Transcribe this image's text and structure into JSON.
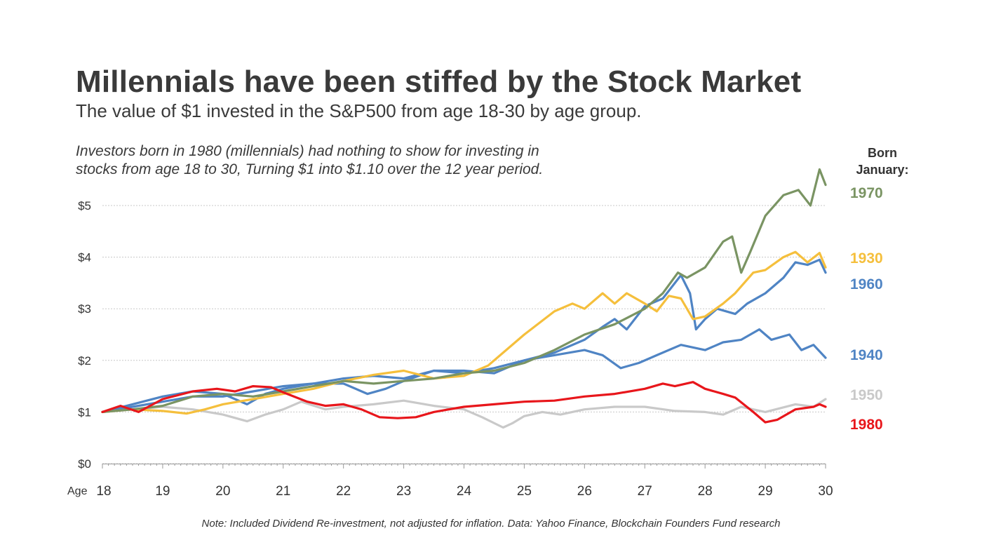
{
  "chart_data": {
    "type": "line",
    "title": "Millennials have been stiffed by the Stock Market",
    "subtitle": "The value of $1 invested in the S&P500 from age 18-30 by age group.",
    "annotation": [
      "Investors born in 1980 (millennials) had nothing to show for investing in",
      "stocks from age 18 to 30, Turning $1 into $1.10 over the 12 year period."
    ],
    "legend_title": [
      "Born",
      "January:"
    ],
    "legend_placement": "right",
    "note": "Note: Included Dividend Re-investment, not adjusted for inflation. Data: Yahoo Finance, Blockchain Founders Fund research",
    "xlabel": "Age",
    "x_ticks": [
      "18",
      "19",
      "20",
      "21",
      "22",
      "23",
      "24",
      "25",
      "26",
      "27",
      "28",
      "29",
      "30"
    ],
    "y_ticks": [
      "$0",
      "$1",
      "$2",
      "$3",
      "$4",
      "$5"
    ],
    "xlim": [
      18,
      30
    ],
    "ylim": [
      0,
      5
    ],
    "grid": true,
    "series": [
      {
        "name": "1970",
        "color": "#7a9463",
        "points": [
          [
            18,
            1.0
          ],
          [
            18.5,
            1.05
          ],
          [
            19,
            1.12
          ],
          [
            19.5,
            1.3
          ],
          [
            20,
            1.35
          ],
          [
            20.5,
            1.3
          ],
          [
            21,
            1.4
          ],
          [
            21.5,
            1.5
          ],
          [
            22,
            1.6
          ],
          [
            22.5,
            1.55
          ],
          [
            23,
            1.6
          ],
          [
            23.5,
            1.65
          ],
          [
            24,
            1.75
          ],
          [
            24.5,
            1.8
          ],
          [
            25,
            1.95
          ],
          [
            25.5,
            2.2
          ],
          [
            26,
            2.5
          ],
          [
            26.5,
            2.7
          ],
          [
            27,
            3.0
          ],
          [
            27.3,
            3.3
          ],
          [
            27.55,
            3.7
          ],
          [
            27.7,
            3.6
          ],
          [
            28,
            3.8
          ],
          [
            28.3,
            4.3
          ],
          [
            28.45,
            4.4
          ],
          [
            28.6,
            3.7
          ],
          [
            28.75,
            4.1
          ],
          [
            29,
            4.8
          ],
          [
            29.3,
            5.2
          ],
          [
            29.55,
            5.3
          ],
          [
            29.75,
            5.0
          ],
          [
            29.9,
            5.7
          ],
          [
            30,
            5.4
          ]
        ]
      },
      {
        "name": "1930",
        "color": "#f5bf3c",
        "points": [
          [
            18,
            1.0
          ],
          [
            18.5,
            1.05
          ],
          [
            19,
            1.02
          ],
          [
            19.4,
            0.97
          ],
          [
            19.7,
            1.05
          ],
          [
            20,
            1.15
          ],
          [
            20.5,
            1.25
          ],
          [
            21,
            1.35
          ],
          [
            21.5,
            1.45
          ],
          [
            22,
            1.6
          ],
          [
            22.5,
            1.72
          ],
          [
            23,
            1.8
          ],
          [
            23.5,
            1.65
          ],
          [
            24,
            1.7
          ],
          [
            24.4,
            1.9
          ],
          [
            24.7,
            2.2
          ],
          [
            25,
            2.5
          ],
          [
            25.5,
            2.95
          ],
          [
            25.8,
            3.1
          ],
          [
            26,
            3.0
          ],
          [
            26.3,
            3.3
          ],
          [
            26.5,
            3.1
          ],
          [
            26.7,
            3.3
          ],
          [
            27,
            3.1
          ],
          [
            27.2,
            2.95
          ],
          [
            27.4,
            3.25
          ],
          [
            27.6,
            3.2
          ],
          [
            27.8,
            2.8
          ],
          [
            28,
            2.85
          ],
          [
            28.3,
            3.1
          ],
          [
            28.5,
            3.3
          ],
          [
            28.8,
            3.7
          ],
          [
            29,
            3.75
          ],
          [
            29.3,
            4.0
          ],
          [
            29.5,
            4.1
          ],
          [
            29.7,
            3.9
          ],
          [
            29.9,
            4.08
          ],
          [
            30,
            3.8
          ]
        ]
      },
      {
        "name": "1960",
        "color": "#4f84c4",
        "points": [
          [
            18,
            1.0
          ],
          [
            18.5,
            1.15
          ],
          [
            19,
            1.3
          ],
          [
            19.5,
            1.4
          ],
          [
            20,
            1.35
          ],
          [
            20.4,
            1.15
          ],
          [
            20.7,
            1.35
          ],
          [
            21,
            1.45
          ],
          [
            21.5,
            1.55
          ],
          [
            22,
            1.55
          ],
          [
            22.4,
            1.35
          ],
          [
            22.7,
            1.45
          ],
          [
            23,
            1.6
          ],
          [
            23.5,
            1.8
          ],
          [
            24,
            1.8
          ],
          [
            24.5,
            1.75
          ],
          [
            25,
            2.0
          ],
          [
            25.5,
            2.15
          ],
          [
            26,
            2.4
          ],
          [
            26.3,
            2.65
          ],
          [
            26.5,
            2.8
          ],
          [
            26.7,
            2.6
          ],
          [
            27,
            3.05
          ],
          [
            27.3,
            3.2
          ],
          [
            27.6,
            3.65
          ],
          [
            27.75,
            3.3
          ],
          [
            27.85,
            2.6
          ],
          [
            28,
            2.8
          ],
          [
            28.2,
            3.0
          ],
          [
            28.5,
            2.9
          ],
          [
            28.7,
            3.1
          ],
          [
            29,
            3.3
          ],
          [
            29.3,
            3.6
          ],
          [
            29.5,
            3.9
          ],
          [
            29.7,
            3.85
          ],
          [
            29.9,
            3.95
          ],
          [
            30,
            3.7
          ]
        ]
      },
      {
        "name": "1940",
        "color": "#4f84c4",
        "points": [
          [
            18,
            1.0
          ],
          [
            18.5,
            1.1
          ],
          [
            19,
            1.2
          ],
          [
            19.5,
            1.3
          ],
          [
            20,
            1.3
          ],
          [
            20.5,
            1.4
          ],
          [
            21,
            1.5
          ],
          [
            21.5,
            1.55
          ],
          [
            22,
            1.65
          ],
          [
            22.5,
            1.7
          ],
          [
            23,
            1.65
          ],
          [
            23.5,
            1.8
          ],
          [
            24,
            1.75
          ],
          [
            24.5,
            1.85
          ],
          [
            25,
            2.0
          ],
          [
            25.5,
            2.1
          ],
          [
            26,
            2.2
          ],
          [
            26.3,
            2.1
          ],
          [
            26.6,
            1.85
          ],
          [
            26.9,
            1.95
          ],
          [
            27.2,
            2.1
          ],
          [
            27.6,
            2.3
          ],
          [
            28,
            2.2
          ],
          [
            28.3,
            2.35
          ],
          [
            28.6,
            2.4
          ],
          [
            28.9,
            2.6
          ],
          [
            29.1,
            2.4
          ],
          [
            29.4,
            2.5
          ],
          [
            29.6,
            2.2
          ],
          [
            29.8,
            2.3
          ],
          [
            30,
            2.05
          ]
        ]
      },
      {
        "name": "1950",
        "color": "#c9c9c9",
        "points": [
          [
            18,
            1.0
          ],
          [
            18.5,
            1.05
          ],
          [
            19,
            1.1
          ],
          [
            19.5,
            1.05
          ],
          [
            20,
            0.95
          ],
          [
            20.4,
            0.82
          ],
          [
            20.7,
            0.95
          ],
          [
            21,
            1.05
          ],
          [
            21.3,
            1.2
          ],
          [
            21.7,
            1.05
          ],
          [
            22,
            1.1
          ],
          [
            22.5,
            1.15
          ],
          [
            23,
            1.22
          ],
          [
            23.5,
            1.12
          ],
          [
            24,
            1.05
          ],
          [
            24.3,
            0.9
          ],
          [
            24.65,
            0.7
          ],
          [
            24.8,
            0.78
          ],
          [
            25,
            0.92
          ],
          [
            25.3,
            1.0
          ],
          [
            25.6,
            0.95
          ],
          [
            26,
            1.05
          ],
          [
            26.5,
            1.1
          ],
          [
            27,
            1.1
          ],
          [
            27.5,
            1.02
          ],
          [
            28,
            1.0
          ],
          [
            28.3,
            0.95
          ],
          [
            28.6,
            1.1
          ],
          [
            29,
            1.0
          ],
          [
            29.5,
            1.15
          ],
          [
            29.8,
            1.1
          ],
          [
            30,
            1.25
          ]
        ]
      },
      {
        "name": "1980",
        "color": "#e8161b",
        "points": [
          [
            18,
            1.0
          ],
          [
            18.3,
            1.12
          ],
          [
            18.6,
            1.0
          ],
          [
            19,
            1.25
          ],
          [
            19.5,
            1.4
          ],
          [
            19.9,
            1.45
          ],
          [
            20.2,
            1.4
          ],
          [
            20.5,
            1.5
          ],
          [
            20.8,
            1.48
          ],
          [
            21,
            1.38
          ],
          [
            21.4,
            1.2
          ],
          [
            21.7,
            1.12
          ],
          [
            22,
            1.15
          ],
          [
            22.3,
            1.05
          ],
          [
            22.6,
            0.9
          ],
          [
            22.9,
            0.88
          ],
          [
            23.2,
            0.9
          ],
          [
            23.5,
            1.0
          ],
          [
            24,
            1.1
          ],
          [
            24.5,
            1.15
          ],
          [
            25,
            1.2
          ],
          [
            25.5,
            1.22
          ],
          [
            26,
            1.3
          ],
          [
            26.5,
            1.35
          ],
          [
            27,
            1.45
          ],
          [
            27.3,
            1.55
          ],
          [
            27.5,
            1.5
          ],
          [
            27.8,
            1.58
          ],
          [
            28,
            1.45
          ],
          [
            28.3,
            1.35
          ],
          [
            28.5,
            1.28
          ],
          [
            28.8,
            1.0
          ],
          [
            29,
            0.8
          ],
          [
            29.2,
            0.85
          ],
          [
            29.5,
            1.05
          ],
          [
            29.8,
            1.1
          ],
          [
            29.9,
            1.15
          ],
          [
            30,
            1.1
          ]
        ]
      }
    ]
  }
}
